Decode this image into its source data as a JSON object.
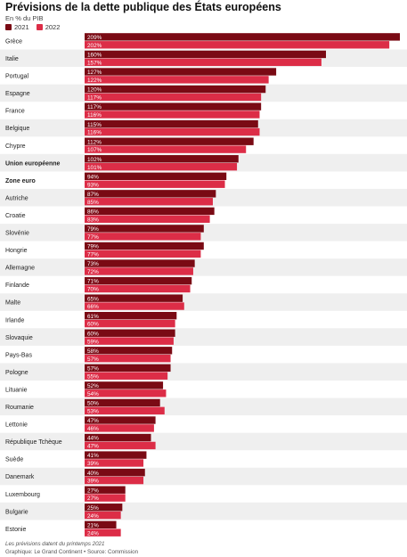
{
  "header": {
    "title": "Prévisions de la dette publique des États européens",
    "subtitle": "En % du PIB"
  },
  "colors": {
    "series_2021": "#7a0a14",
    "series_2022": "#dc2d47",
    "row_alt": "#efefef",
    "bar_label": "#ffffff"
  },
  "chart_data": {
    "type": "bar",
    "orientation": "horizontal",
    "title": "Prévisions de la dette publique des États européens",
    "subtitle": "En % du PIB",
    "xlim": [
      0,
      209
    ],
    "grid": false,
    "legend": "top-left",
    "categories": [
      "Grèce",
      "Italie",
      "Portugal",
      "Espagne",
      "France",
      "Belgique",
      "Chypre",
      "Union européenne",
      "Zone euro",
      "Autriche",
      "Croatie",
      "Slovénie",
      "Hongrie",
      "Allemagne",
      "Finlande",
      "Malte",
      "Irlande",
      "Slovaquie",
      "Pays-Bas",
      "Pologne",
      "Lituanie",
      "Roumanie",
      "Lettonie",
      "République Tchèque",
      "Suède",
      "Danemark",
      "Luxembourg",
      "Bulgarie",
      "Estonie"
    ],
    "bold_categories": [
      "Union européenne",
      "Zone euro"
    ],
    "series": [
      {
        "name": "2021",
        "values": [
          209,
          160,
          127,
          120,
          117,
          115,
          112,
          102,
          94,
          87,
          86,
          79,
          79,
          73,
          71,
          65,
          61,
          60,
          58,
          57,
          52,
          50,
          47,
          44,
          41,
          40,
          27,
          25,
          21
        ]
      },
      {
        "name": "2022",
        "values": [
          202,
          157,
          122,
          117,
          116,
          116,
          107,
          101,
          93,
          85,
          83,
          77,
          77,
          72,
          70,
          66,
          60,
          59,
          57,
          55,
          54,
          53,
          46,
          47,
          39,
          39,
          27,
          24,
          24
        ]
      }
    ],
    "value_suffix": "%"
  },
  "footer": {
    "note": "Les prévisions datent du printemps 2021",
    "credit": "Graphique: Le Grand Continent • Source: Commission"
  }
}
